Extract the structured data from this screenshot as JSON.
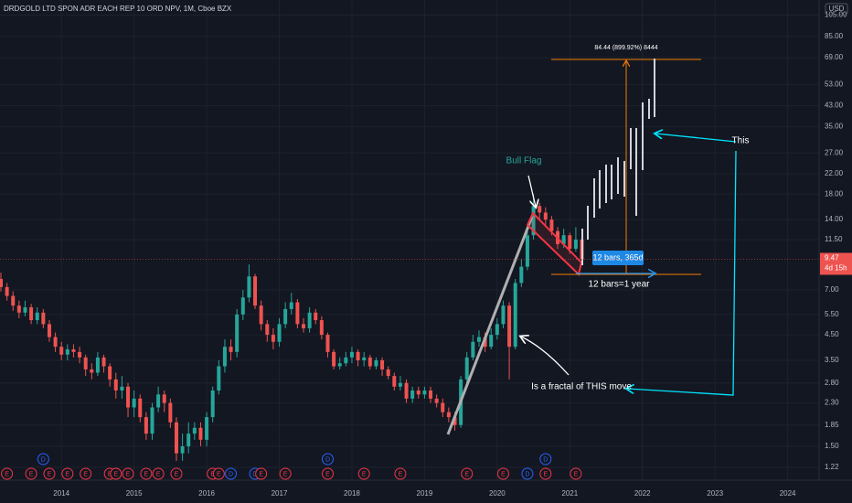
{
  "chart_data": {
    "type": "candlestick",
    "title": "DRDGOLD LTD SPON ADR EACH REP 10 ORD NPV, 1M, Cboe BZX",
    "currency": "USD",
    "log_scale": true,
    "up_color": "#26a69a",
    "down_color": "#ef5350",
    "open": [
      7.8,
      7.2,
      6.6,
      6.0,
      5.6,
      5.9,
      5.2,
      5.6,
      5.0,
      4.4,
      4.0,
      3.7,
      3.9,
      3.8,
      3.6,
      3.2,
      3.1,
      3.6,
      3.3,
      2.9,
      2.6,
      2.7,
      2.2,
      2.4,
      2.0,
      1.7,
      2.2,
      2.5,
      2.3,
      1.9,
      1.4,
      1.5,
      1.7,
      1.8,
      1.6,
      2.0,
      2.6,
      3.3,
      4.0,
      3.8,
      5.5,
      6.5,
      8.0,
      6.0,
      5.0,
      4.5,
      4.2,
      5.0,
      5.8,
      6.2,
      5.0,
      4.8,
      5.6,
      5.2,
      4.5,
      3.8,
      3.3,
      3.4,
      3.6,
      3.8,
      3.5,
      3.6,
      3.3,
      3.5,
      3.2,
      3.0,
      2.7,
      2.8,
      2.4,
      2.6,
      2.5,
      2.6,
      2.4,
      2.3,
      2.1,
      2.0,
      1.85,
      2.9,
      3.6,
      4.2,
      4.4,
      4.0,
      4.5,
      5.0,
      6.0,
      4.0,
      7.5,
      8.8,
      12.0,
      16.0,
      15.0,
      14.0,
      12.5,
      11.0,
      12.0,
      10.5,
      11.5
    ],
    "high": [
      8.3,
      7.5,
      6.9,
      6.3,
      6.3,
      6.1,
      5.9,
      5.8,
      5.2,
      4.6,
      4.2,
      4.1,
      4.1,
      4.0,
      3.7,
      3.4,
      3.8,
      3.7,
      3.4,
      3.1,
      3.0,
      2.8,
      2.6,
      2.5,
      2.1,
      2.3,
      2.7,
      2.6,
      2.4,
      2.0,
      1.7,
      1.9,
      1.9,
      1.9,
      2.1,
      2.7,
      3.5,
      4.3,
      4.3,
      5.8,
      7.0,
      9.0,
      8.2,
      6.3,
      5.2,
      4.8,
      5.3,
      6.2,
      6.8,
      6.4,
      5.3,
      5.9,
      5.8,
      5.4,
      4.6,
      3.9,
      3.6,
      3.8,
      4.0,
      3.9,
      3.8,
      3.7,
      3.6,
      3.6,
      3.3,
      3.1,
      3.0,
      2.9,
      2.7,
      2.7,
      2.7,
      2.7,
      2.5,
      2.4,
      2.2,
      2.1,
      3.0,
      3.8,
      4.5,
      4.7,
      4.6,
      4.8,
      5.3,
      6.3,
      6.2,
      7.8,
      9.5,
      12.5,
      18.0,
      16.5,
      15.8,
      14.5,
      13.0,
      12.8,
      12.3,
      13.0,
      11.8
    ],
    "low": [
      6.9,
      6.3,
      5.7,
      5.3,
      5.4,
      5.0,
      5.0,
      4.8,
      4.2,
      3.8,
      3.5,
      3.5,
      3.6,
      3.4,
      3.0,
      2.9,
      3.0,
      3.1,
      2.7,
      2.4,
      2.4,
      2.0,
      2.0,
      1.9,
      1.6,
      1.6,
      2.1,
      2.1,
      1.8,
      1.3,
      1.3,
      1.4,
      1.6,
      1.5,
      1.5,
      1.9,
      2.5,
      3.1,
      3.5,
      3.6,
      5.2,
      6.2,
      5.8,
      4.7,
      4.2,
      3.9,
      4.0,
      4.8,
      5.5,
      4.8,
      4.6,
      4.6,
      5.0,
      4.3,
      3.6,
      3.2,
      3.2,
      3.3,
      3.4,
      3.3,
      3.3,
      3.2,
      3.2,
      3.0,
      2.9,
      2.6,
      2.6,
      2.3,
      2.3,
      2.4,
      2.4,
      2.3,
      2.2,
      2.0,
      1.9,
      1.75,
      1.8,
      2.8,
      3.5,
      4.0,
      3.8,
      3.9,
      4.3,
      4.8,
      2.9,
      3.9,
      7.2,
      8.5,
      11.5,
      14.0,
      13.0,
      12.0,
      10.5,
      10.6,
      10.0,
      10.2,
      9.3
    ],
    "close": [
      7.2,
      6.6,
      6.0,
      5.6,
      5.9,
      5.2,
      5.6,
      5.0,
      4.4,
      4.0,
      3.7,
      3.9,
      3.8,
      3.6,
      3.2,
      3.1,
      3.6,
      3.3,
      2.9,
      2.6,
      2.7,
      2.2,
      2.4,
      2.0,
      1.7,
      2.2,
      2.5,
      2.3,
      1.9,
      1.4,
      1.5,
      1.7,
      1.8,
      1.6,
      2.0,
      2.6,
      3.3,
      4.0,
      3.8,
      5.5,
      6.5,
      8.0,
      6.0,
      5.0,
      4.5,
      4.2,
      5.0,
      5.8,
      6.2,
      5.0,
      4.8,
      5.6,
      5.2,
      4.5,
      3.8,
      3.3,
      3.4,
      3.6,
      3.8,
      3.5,
      3.6,
      3.3,
      3.5,
      3.2,
      3.0,
      2.7,
      2.8,
      2.4,
      2.6,
      2.5,
      2.6,
      2.4,
      2.3,
      2.1,
      2.0,
      1.85,
      2.9,
      3.6,
      4.2,
      4.4,
      4.0,
      4.5,
      5.0,
      6.0,
      4.0,
      7.5,
      8.8,
      12.0,
      16.0,
      15.0,
      14.0,
      12.5,
      11.0,
      12.0,
      10.5,
      11.5,
      9.47
    ],
    "xticks": [
      {
        "value": 10,
        "label": "2014"
      },
      {
        "value": 22,
        "label": "2015"
      },
      {
        "value": 34,
        "label": "2016"
      },
      {
        "value": 46,
        "label": "2017"
      },
      {
        "value": 58,
        "label": "2018"
      },
      {
        "value": 70,
        "label": "2019"
      },
      {
        "value": 82,
        "label": "2020"
      },
      {
        "value": 94,
        "label": "2021"
      },
      {
        "value": 106,
        "label": "2022"
      },
      {
        "value": 118,
        "label": "2023"
      },
      {
        "value": 130,
        "label": "2024"
      }
    ],
    "ylim": [
      1.075,
      121.8
    ],
    "yticks": [
      {
        "value": 1.22,
        "label": "1.22"
      },
      {
        "value": 1.5,
        "label": "1.50"
      },
      {
        "value": 1.85,
        "label": "1.85"
      },
      {
        "value": 2.3,
        "label": "2.30"
      },
      {
        "value": 2.8,
        "label": "2.80"
      },
      {
        "value": 3.5,
        "label": "3.50"
      },
      {
        "value": 4.5,
        "label": "4.50"
      },
      {
        "value": 5.5,
        "label": "5.50"
      },
      {
        "value": 7,
        "label": "7.00"
      },
      {
        "value": 11.5,
        "label": "11.50"
      },
      {
        "value": 14,
        "label": "14.00"
      },
      {
        "value": 18,
        "label": "18.00"
      },
      {
        "value": 22,
        "label": "22.00"
      },
      {
        "value": 27,
        "label": "27.00"
      },
      {
        "value": 35,
        "label": "35.00"
      },
      {
        "value": 43,
        "label": "43.00"
      },
      {
        "value": 53,
        "label": "53.00"
      },
      {
        "value": 69,
        "label": "69.00"
      },
      {
        "value": 85,
        "label": "85.00"
      },
      {
        "value": 105,
        "label": "105.00"
      }
    ],
    "last_price": 9.47,
    "countdown": "4d 15h",
    "event_colors": {
      "E": "#f23645",
      "D": "#2962ff"
    },
    "events": [
      {
        "label": "E",
        "x": 1
      },
      {
        "label": "E",
        "x": 5
      },
      {
        "label": "D",
        "x": 7,
        "row": 2
      },
      {
        "label": "E",
        "x": 8
      },
      {
        "label": "E",
        "x": 11
      },
      {
        "label": "E",
        "x": 14
      },
      {
        "label": "E",
        "x": 18
      },
      {
        "label": "E",
        "x": 19
      },
      {
        "label": "E",
        "x": 21
      },
      {
        "label": "E",
        "x": 24
      },
      {
        "label": "E",
        "x": 26
      },
      {
        "label": "E",
        "x": 29
      },
      {
        "label": "E",
        "x": 35
      },
      {
        "label": "E",
        "x": 36
      },
      {
        "label": "D",
        "x": 38
      },
      {
        "label": "D",
        "x": 42
      },
      {
        "label": "E",
        "x": 43
      },
      {
        "label": "E",
        "x": 47
      },
      {
        "label": "D",
        "x": 54,
        "row": 2
      },
      {
        "label": "E",
        "x": 54
      },
      {
        "label": "E",
        "x": 60
      },
      {
        "label": "E",
        "x": 66
      },
      {
        "label": "E",
        "x": 77
      },
      {
        "label": "E",
        "x": 83
      },
      {
        "label": "D",
        "x": 87
      },
      {
        "label": "D",
        "x": 90,
        "row": 2
      },
      {
        "label": "E",
        "x": 90
      },
      {
        "label": "E",
        "x": 95
      }
    ],
    "annotations": [
      "Bull Flag",
      "84.44 (899.92%) 8444",
      "12 bars, 365d",
      "12 bars=1 year",
      "This",
      "Is a fractal of THIS move"
    ]
  }
}
